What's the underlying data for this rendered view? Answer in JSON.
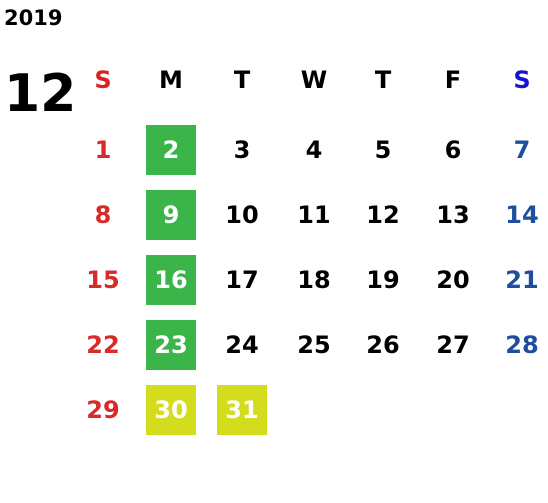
{
  "calendar": {
    "year": "2019",
    "month": "12",
    "weekdays": [
      "S",
      "M",
      "T",
      "W",
      "T",
      "F",
      "S"
    ],
    "weeks": [
      [
        "1",
        {
          "text": "2",
          "fill": "#3bb54a"
        },
        "3",
        "4",
        "5",
        "6",
        "7"
      ],
      [
        "8",
        {
          "text": "9",
          "fill": "#3bb54a"
        },
        "10",
        "11",
        "12",
        "13",
        "14"
      ],
      [
        "15",
        {
          "text": "16",
          "fill": "#3bb54a"
        },
        "17",
        "18",
        "19",
        "20",
        "21"
      ],
      [
        "22",
        {
          "text": "23",
          "fill": "#3bb54a"
        },
        "24",
        "25",
        "26",
        "27",
        "28"
      ],
      [
        "29",
        {
          "text": "30",
          "fill": "#d4dc1e"
        },
        {
          "text": "31",
          "fill": "#d4dc1e"
        }
      ]
    ],
    "colors": {
      "sunday_header": "#e02020",
      "saturday_header": "#1414d2",
      "sunday": "#d92a2a",
      "saturday": "#1f4e9c",
      "weekday": "#000000",
      "highlight_text": "#ffffff"
    }
  }
}
